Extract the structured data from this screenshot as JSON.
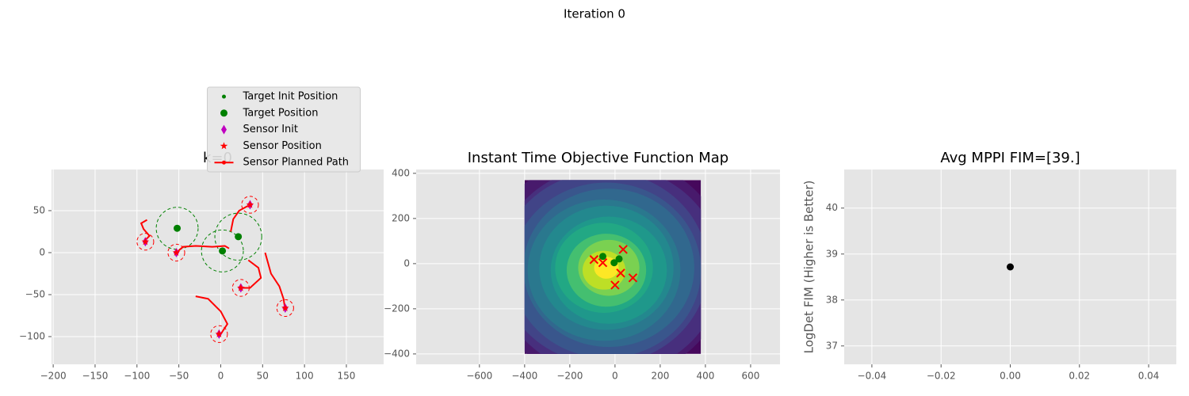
{
  "title": "Iteration 0",
  "chart_data": [
    {
      "type": "scatter",
      "title": "k=0",
      "xlim": [
        -202,
        194.5
      ],
      "ylim": [
        -133,
        99
      ],
      "xticks": [
        {
          "value": -200,
          "label": "−200"
        },
        {
          "value": -150,
          "label": "−150"
        },
        {
          "value": -100,
          "label": "−100"
        },
        {
          "value": -50,
          "label": "−50"
        },
        0,
        50,
        100,
        150
      ],
      "yticks": [
        {
          "value": -100,
          "label": "−100"
        },
        {
          "value": -50,
          "label": "−50"
        },
        0,
        50
      ],
      "grid": true,
      "legend": "upper center",
      "series": [
        {
          "name": "Target Init Position",
          "color": "green",
          "marker": "point",
          "x": [
            -52,
            21,
            2
          ],
          "y": [
            29,
            19,
            2
          ]
        },
        {
          "name": "Target Position",
          "color": "green",
          "marker": "circle",
          "x": [
            -52,
            21,
            2
          ],
          "y": [
            29,
            19,
            2
          ],
          "radius": [
            25,
            28,
            25
          ]
        },
        {
          "name": "Sensor Init",
          "color": "#c000c0",
          "marker": "diamond",
          "x": [
            -90,
            -53,
            35,
            24,
            77,
            -2
          ],
          "y": [
            13,
            0,
            57,
            -42,
            -66,
            -97
          ]
        },
        {
          "name": "Sensor Position",
          "color": "red",
          "marker": "star",
          "x": [
            -90,
            -53,
            35,
            24,
            77,
            -2
          ],
          "y": [
            13,
            0,
            57,
            -42,
            -66,
            -97
          ],
          "radius": [
            10,
            10,
            10,
            10,
            10,
            10
          ]
        },
        {
          "name": "Sensor Planned Path",
          "color": "red",
          "marker": "line",
          "paths": [
            {
              "x": [
                -90,
                -85,
                -92,
                -95,
                -88
              ],
              "y": [
                15,
                20,
                28,
                35,
                39
              ]
            },
            {
              "x": [
                -53,
                -45,
                -30,
                -10,
                5,
                10
              ],
              "y": [
                0,
                7,
                8,
                7,
                8,
                5
              ]
            },
            {
              "x": [
                35,
                22,
                15,
                12
              ],
              "y": [
                57,
                50,
                40,
                25
              ]
            },
            {
              "x": [
                33,
                45,
                48,
                35,
                24
              ],
              "y": [
                -9,
                -18,
                -30,
                -42,
                -42
              ]
            },
            {
              "x": [
                53,
                60,
                70,
                75,
                77
              ],
              "y": [
                0,
                -25,
                -40,
                -55,
                -68
              ]
            },
            {
              "x": [
                -30,
                -15,
                0,
                8,
                0
              ],
              "y": [
                -52,
                -55,
                -70,
                -85,
                -97
              ]
            }
          ]
        }
      ]
    },
    {
      "type": "contour",
      "title": "Instant Time Objective Function Map",
      "xlim": [
        -880,
        730
      ],
      "ylim": [
        -446,
        417
      ],
      "xticks": [
        {
          "value": -600,
          "label": "−600"
        },
        {
          "value": -400,
          "label": "−400"
        },
        {
          "value": -200,
          "label": "−200"
        },
        0,
        200,
        400,
        600
      ],
      "yticks": [
        {
          "value": -400,
          "label": "−400"
        },
        {
          "value": -200,
          "label": "−200"
        },
        0,
        200,
        400
      ],
      "grid": true,
      "map_x": [
        -400,
        380
      ],
      "map_y": [
        -400,
        370
      ],
      "series": [
        {
          "color": "green",
          "marker": "circle",
          "x": [
            -54,
            18,
            -4
          ],
          "y": [
            32,
            21,
            4
          ]
        },
        {
          "color": "red",
          "marker": "x",
          "x": [
            -93,
            -54,
            36,
            25,
            79,
            0
          ],
          "y": [
            18,
            4,
            63,
            -42,
            -63,
            -95
          ]
        }
      ]
    },
    {
      "type": "scatter",
      "title": "Avg MPPI FIM=[39.]",
      "y_label": "LogDet FIM (Higher is Better)",
      "xlim": [
        -0.048,
        0.048
      ],
      "ylim": [
        36.6,
        40.84
      ],
      "xticks": [
        {
          "value": -0.04,
          "label": "−0.04"
        },
        {
          "value": -0.02,
          "label": "−0.02"
        },
        {
          "value": 0,
          "label": "0.00"
        },
        0.02,
        0.04
      ],
      "yticks": [
        37,
        38,
        39,
        40
      ],
      "grid": true,
      "series": [
        {
          "color": "black",
          "marker": "circle",
          "x": [
            0
          ],
          "y": [
            38.72
          ]
        }
      ]
    }
  ]
}
